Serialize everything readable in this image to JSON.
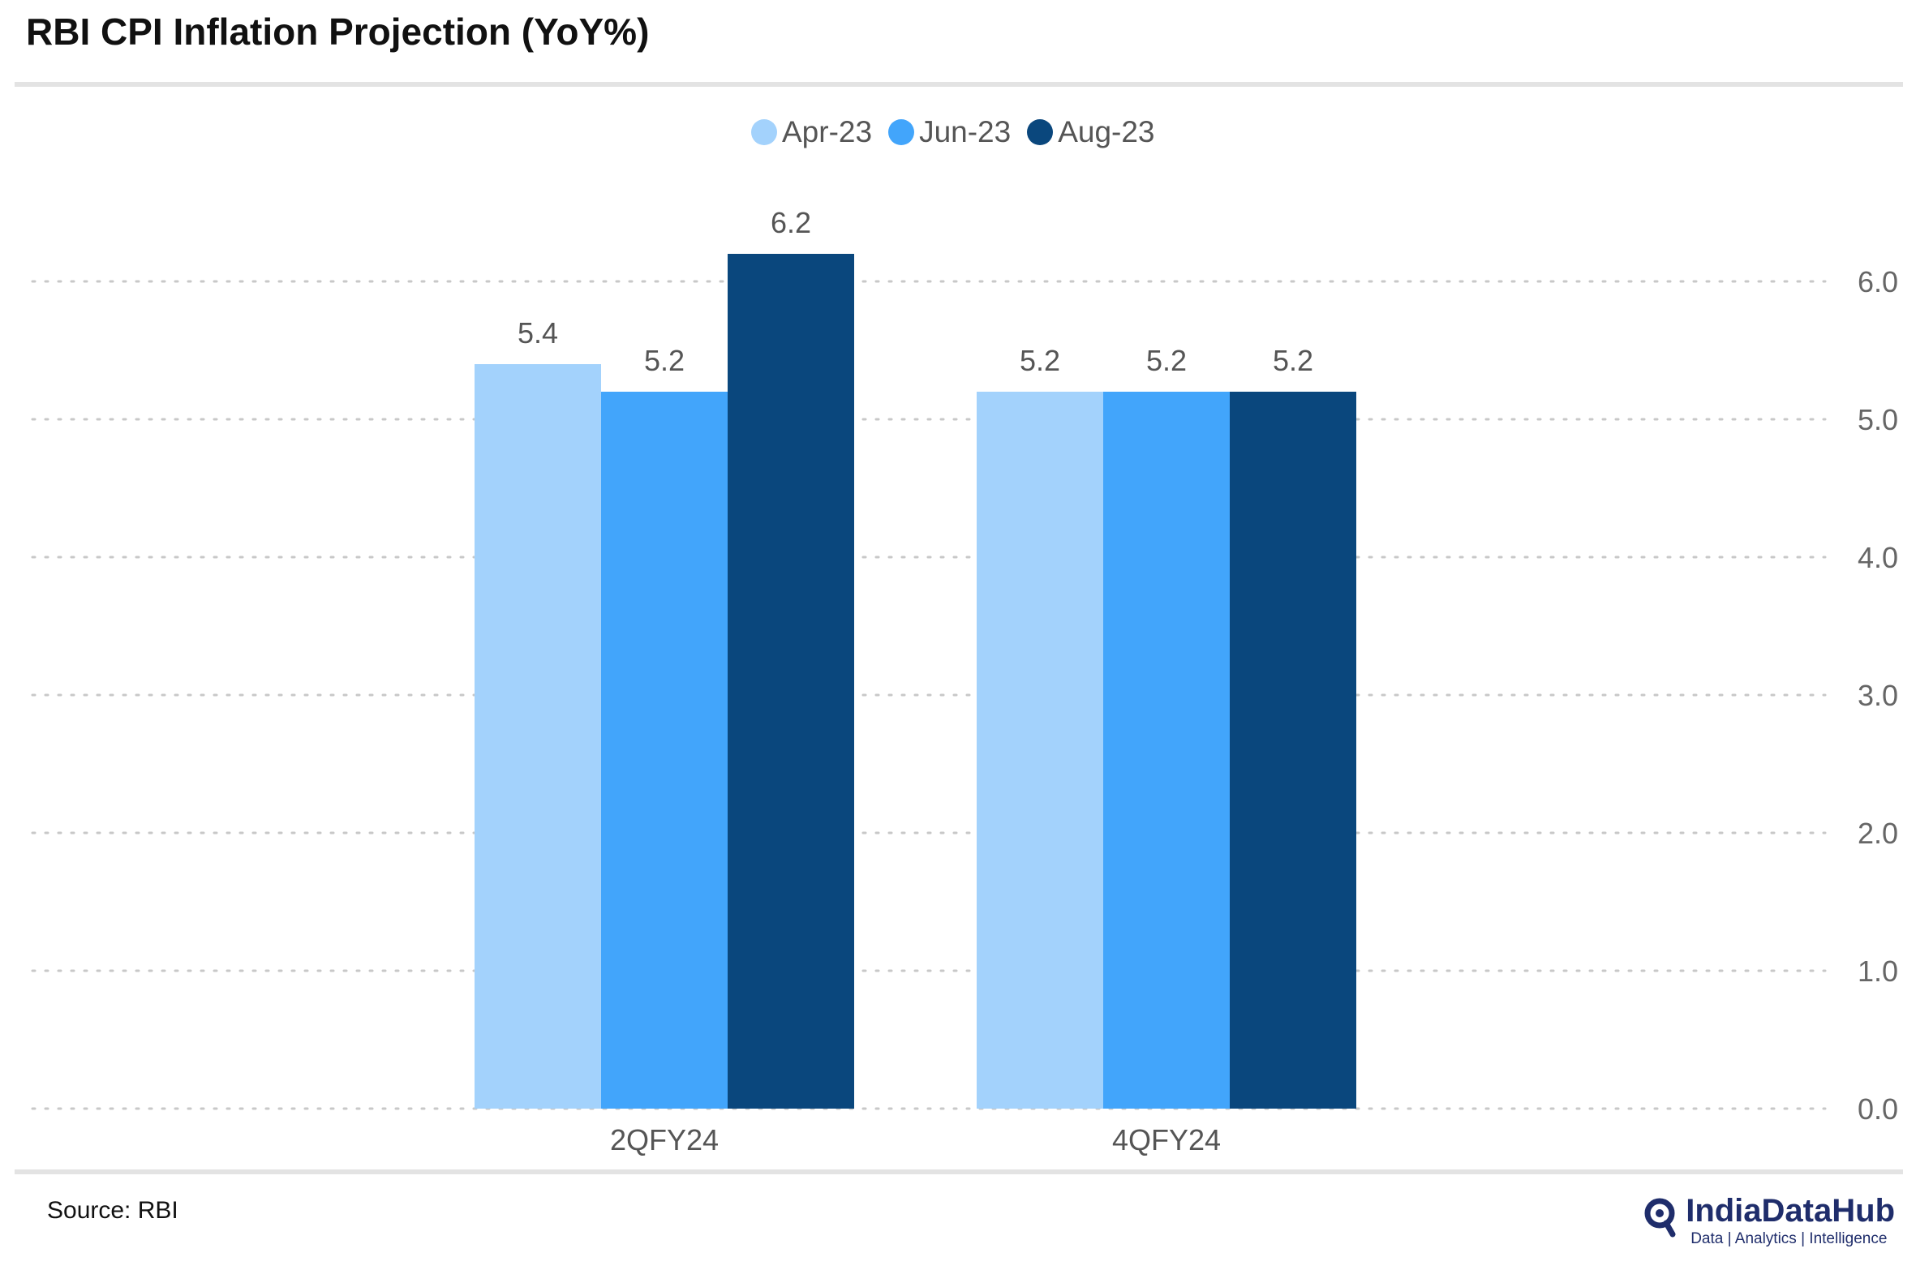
{
  "header": {
    "title": "RBI CPI Inflation Projection (YoY%)"
  },
  "footer": {
    "source": "Source: RBI",
    "brand_name": "IndiaDataHub",
    "brand_tagline": "Data | Analytics | Intelligence",
    "brand_icon": "q-magnifier-logo-icon"
  },
  "colors": {
    "apr": "#a3d2fc",
    "jun": "#42a5fb",
    "aug": "#0a477d",
    "grid": "#c8c8c8",
    "rule": "#e3e3e3",
    "brand": "#1f2d6b"
  },
  "chart_data": {
    "type": "bar",
    "categories": [
      "2QFY24",
      "4QFY24"
    ],
    "series": [
      {
        "name": "Apr-23",
        "color": "#a3d2fc",
        "values": [
          5.4,
          5.2
        ]
      },
      {
        "name": "Jun-23",
        "color": "#42a5fb",
        "values": [
          5.2,
          5.2
        ]
      },
      {
        "name": "Aug-23",
        "color": "#0a477d",
        "values": [
          6.2,
          5.2
        ]
      }
    ],
    "data_labels": true,
    "ylim": [
      0,
      6.0
    ],
    "yticks": [
      "0.0",
      "1.0",
      "2.0",
      "3.0",
      "4.0",
      "5.0",
      "6.0"
    ],
    "y_axis_position": "right",
    "grid": "horizontal dotted",
    "legend_position": "top-center",
    "title": "RBI CPI Inflation Projection (YoY%)",
    "xlabel": "",
    "ylabel": ""
  }
}
